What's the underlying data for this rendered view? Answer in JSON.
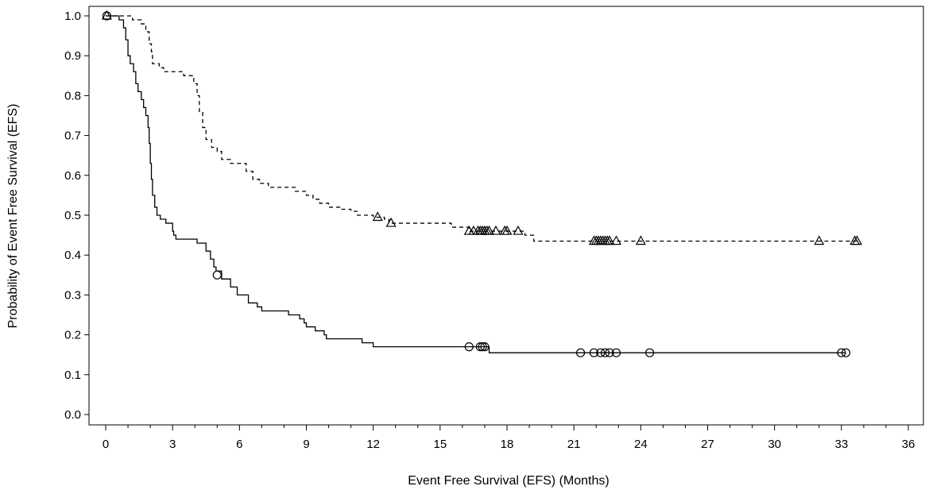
{
  "chart_data": {
    "type": "line",
    "title": "",
    "xlabel": "Event Free Survival (EFS) (Months)",
    "ylabel": "Probability of Event Free Survival (EFS)",
    "xlim": [
      0,
      36
    ],
    "ylim": [
      0,
      1
    ],
    "x_ticks": [
      "0",
      "3",
      "6",
      "9",
      "12",
      "15",
      "18",
      "21",
      "24",
      "27",
      "30",
      "33",
      "36"
    ],
    "y_ticks": [
      "0.0",
      "0.1",
      "0.2",
      "0.3",
      "0.4",
      "0.5",
      "0.6",
      "0.7",
      "0.8",
      "0.9",
      "1.0"
    ],
    "grid": false,
    "legend": "none",
    "series": [
      {
        "line_style": "solid",
        "censor_marker": "circle",
        "color": "#000000",
        "steps": [
          [
            0,
            1.0
          ],
          [
            0.6,
            0.99
          ],
          [
            0.8,
            0.97
          ],
          [
            0.9,
            0.94
          ],
          [
            1.0,
            0.9
          ],
          [
            1.1,
            0.88
          ],
          [
            1.25,
            0.86
          ],
          [
            1.35,
            0.83
          ],
          [
            1.45,
            0.81
          ],
          [
            1.6,
            0.79
          ],
          [
            1.7,
            0.77
          ],
          [
            1.8,
            0.75
          ],
          [
            1.9,
            0.72
          ],
          [
            1.95,
            0.68
          ],
          [
            2.0,
            0.63
          ],
          [
            2.05,
            0.59
          ],
          [
            2.1,
            0.55
          ],
          [
            2.2,
            0.52
          ],
          [
            2.3,
            0.5
          ],
          [
            2.45,
            0.49
          ],
          [
            2.7,
            0.48
          ],
          [
            3.0,
            0.46
          ],
          [
            3.05,
            0.45
          ],
          [
            3.15,
            0.44
          ],
          [
            4.1,
            0.43
          ],
          [
            4.5,
            0.41
          ],
          [
            4.7,
            0.39
          ],
          [
            4.85,
            0.37
          ],
          [
            4.95,
            0.36
          ],
          [
            5.2,
            0.34
          ],
          [
            5.6,
            0.32
          ],
          [
            5.9,
            0.3
          ],
          [
            6.4,
            0.28
          ],
          [
            6.8,
            0.27
          ],
          [
            7.0,
            0.26
          ],
          [
            8.2,
            0.25
          ],
          [
            8.7,
            0.24
          ],
          [
            8.9,
            0.23
          ],
          [
            9.0,
            0.22
          ],
          [
            9.4,
            0.21
          ],
          [
            9.8,
            0.2
          ],
          [
            9.9,
            0.19
          ],
          [
            11.5,
            0.18
          ],
          [
            12.0,
            0.17
          ],
          [
            17.2,
            0.155
          ],
          [
            33.2,
            0.155
          ]
        ],
        "censored": [
          [
            0.05,
            1.0
          ],
          [
            5.0,
            0.35
          ],
          [
            16.3,
            0.17
          ],
          [
            16.8,
            0.17
          ],
          [
            16.9,
            0.17
          ],
          [
            17.0,
            0.17
          ],
          [
            21.3,
            0.155
          ],
          [
            21.9,
            0.155
          ],
          [
            22.2,
            0.155
          ],
          [
            22.4,
            0.155
          ],
          [
            22.6,
            0.155
          ],
          [
            22.9,
            0.155
          ],
          [
            24.4,
            0.155
          ],
          [
            33.0,
            0.155
          ],
          [
            33.2,
            0.155
          ]
        ]
      },
      {
        "line_style": "dashed",
        "censor_marker": "triangle",
        "color": "#000000",
        "steps": [
          [
            0,
            1.0
          ],
          [
            1.2,
            0.99
          ],
          [
            1.6,
            0.98
          ],
          [
            1.8,
            0.96
          ],
          [
            1.95,
            0.93
          ],
          [
            2.05,
            0.91
          ],
          [
            2.1,
            0.88
          ],
          [
            2.4,
            0.87
          ],
          [
            2.6,
            0.86
          ],
          [
            3.1,
            0.86
          ],
          [
            3.5,
            0.85
          ],
          [
            3.95,
            0.83
          ],
          [
            4.1,
            0.8
          ],
          [
            4.2,
            0.76
          ],
          [
            4.35,
            0.72
          ],
          [
            4.5,
            0.69
          ],
          [
            4.75,
            0.67
          ],
          [
            5.0,
            0.66
          ],
          [
            5.2,
            0.64
          ],
          [
            5.6,
            0.63
          ],
          [
            6.3,
            0.61
          ],
          [
            6.6,
            0.59
          ],
          [
            6.9,
            0.58
          ],
          [
            7.3,
            0.57
          ],
          [
            8.4,
            0.57
          ],
          [
            8.5,
            0.56
          ],
          [
            9.0,
            0.55
          ],
          [
            9.3,
            0.54
          ],
          [
            9.6,
            0.53
          ],
          [
            10.0,
            0.52
          ],
          [
            10.5,
            0.515
          ],
          [
            11.0,
            0.51
          ],
          [
            11.3,
            0.5
          ],
          [
            12.0,
            0.495
          ],
          [
            12.5,
            0.49
          ],
          [
            12.7,
            0.48
          ],
          [
            15.5,
            0.47
          ],
          [
            16.3,
            0.46
          ],
          [
            18.8,
            0.45
          ],
          [
            19.2,
            0.435
          ],
          [
            33.7,
            0.435
          ]
        ],
        "censored": [
          [
            0.05,
            1.0
          ],
          [
            12.2,
            0.495
          ],
          [
            12.8,
            0.48
          ],
          [
            16.3,
            0.46
          ],
          [
            16.5,
            0.46
          ],
          [
            16.7,
            0.46
          ],
          [
            16.8,
            0.46
          ],
          [
            16.9,
            0.46
          ],
          [
            17.0,
            0.46
          ],
          [
            17.1,
            0.46
          ],
          [
            17.2,
            0.46
          ],
          [
            17.5,
            0.46
          ],
          [
            17.9,
            0.46
          ],
          [
            18.0,
            0.46
          ],
          [
            18.5,
            0.46
          ],
          [
            21.9,
            0.435
          ],
          [
            22.0,
            0.435
          ],
          [
            22.1,
            0.435
          ],
          [
            22.2,
            0.435
          ],
          [
            22.3,
            0.435
          ],
          [
            22.4,
            0.435
          ],
          [
            22.5,
            0.435
          ],
          [
            22.6,
            0.435
          ],
          [
            22.9,
            0.435
          ],
          [
            24.0,
            0.435
          ],
          [
            32.0,
            0.435
          ],
          [
            33.6,
            0.435
          ],
          [
            33.7,
            0.435
          ]
        ]
      }
    ]
  }
}
